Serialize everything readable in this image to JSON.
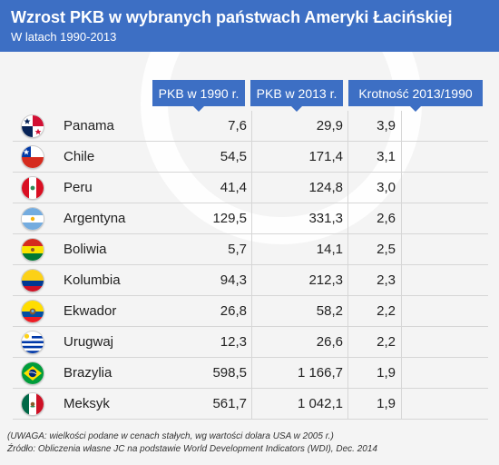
{
  "chart_data": {
    "type": "table",
    "title": "Wzrost PKB w wybranych państwach Ameryki Łacińskiej",
    "subtitle": "W latach 1990-2013",
    "columns": [
      "PKB w 1990 r.",
      "PKB w 2013 r.",
      "Krotność 2013/1990"
    ],
    "rows": [
      {
        "country": "Panama",
        "flag": "panama-flag-icon",
        "gdp1990": "7,6",
        "gdp2013": "29,9",
        "ratio": "3,9"
      },
      {
        "country": "Chile",
        "flag": "chile-flag-icon",
        "gdp1990": "54,5",
        "gdp2013": "171,4",
        "ratio": "3,1"
      },
      {
        "country": "Peru",
        "flag": "peru-flag-icon",
        "gdp1990": "41,4",
        "gdp2013": "124,8",
        "ratio": "3,0"
      },
      {
        "country": "Argentyna",
        "flag": "argentina-flag-icon",
        "gdp1990": "129,5",
        "gdp2013": "331,3",
        "ratio": "2,6"
      },
      {
        "country": "Boliwia",
        "flag": "bolivia-flag-icon",
        "gdp1990": "5,7",
        "gdp2013": "14,1",
        "ratio": "2,5"
      },
      {
        "country": "Kolumbia",
        "flag": "colombia-flag-icon",
        "gdp1990": "94,3",
        "gdp2013": "212,3",
        "ratio": "2,3"
      },
      {
        "country": "Ekwador",
        "flag": "ecuador-flag-icon",
        "gdp1990": "26,8",
        "gdp2013": "58,2",
        "ratio": "2,2"
      },
      {
        "country": "Urugwaj",
        "flag": "uruguay-flag-icon",
        "gdp1990": "12,3",
        "gdp2013": "26,6",
        "ratio": "2,2"
      },
      {
        "country": "Brazylia",
        "flag": "brazil-flag-icon",
        "gdp1990": "598,5",
        "gdp2013": "1 166,7",
        "ratio": "1,9"
      },
      {
        "country": "Meksyk",
        "flag": "mexico-flag-icon",
        "gdp1990": "561,7",
        "gdp2013": "1 042,1",
        "ratio": "1,9"
      }
    ],
    "note": "(UWAGA: wielkości podane w cenach stałych, wg wartości dolara USA w 2005 r.)",
    "source": "Źródło: Obliczenia własne JC na podstawie World Development Indicators (WDI), Dec. 2014"
  },
  "colors": {
    "accent": "#3d6fc4",
    "background": "#f4f4f4",
    "divider": "#d6d6d6"
  }
}
